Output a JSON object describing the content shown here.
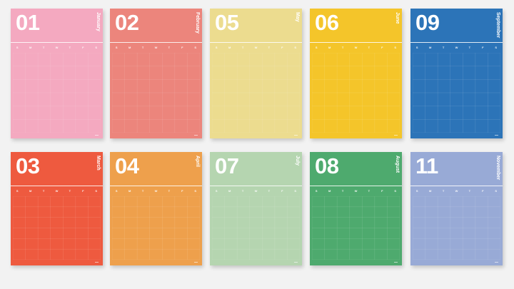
{
  "weekdays": [
    "S",
    "M",
    "T",
    "W",
    "T",
    "F",
    "S"
  ],
  "posters": [
    {
      "number": "01",
      "month": "January",
      "color": "#f4a9c0"
    },
    {
      "number": "02",
      "month": "February",
      "color": "#ec857c"
    },
    {
      "number": "05",
      "month": "May",
      "color": "#ecdc8f"
    },
    {
      "number": "06",
      "month": "June",
      "color": "#f4c52a"
    },
    {
      "number": "09",
      "month": "September",
      "color": "#2c74b8"
    },
    {
      "number": "03",
      "month": "March",
      "color": "#ee5a3f"
    },
    {
      "number": "04",
      "month": "April",
      "color": "#eea04c"
    },
    {
      "number": "07",
      "month": "July",
      "color": "#b5d5b0"
    },
    {
      "number": "08",
      "month": "August",
      "color": "#4eaa6e"
    },
    {
      "number": "11",
      "month": "November",
      "color": "#98aad6"
    }
  ]
}
